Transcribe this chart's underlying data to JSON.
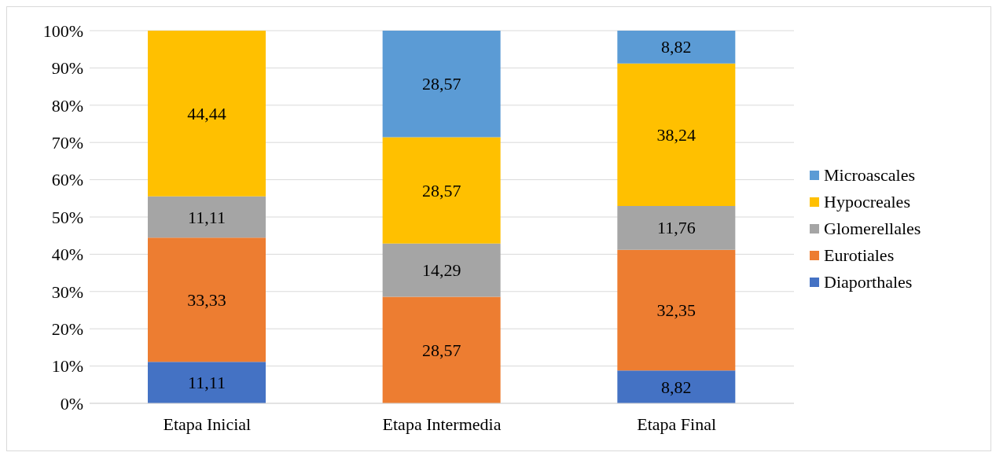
{
  "chart_data": {
    "type": "bar",
    "stacked": true,
    "categories": [
      "Etapa Inicial",
      "Etapa Intermedia",
      "Etapa Final"
    ],
    "series": [
      {
        "name": "Diaporthales",
        "color": "#4472c4",
        "values": [
          11.11,
          null,
          8.82
        ],
        "value_labels": [
          "11,11",
          null,
          "8,82"
        ]
      },
      {
        "name": "Eurotiales",
        "color": "#ed7d31",
        "values": [
          33.33,
          28.57,
          32.35
        ],
        "value_labels": [
          "33,33",
          "28,57",
          "32,35"
        ]
      },
      {
        "name": "Glomerellales",
        "color": "#a5a5a5",
        "values": [
          11.11,
          14.29,
          11.76
        ],
        "value_labels": [
          "11,11",
          "14,29",
          "11,76"
        ]
      },
      {
        "name": "Hypocreales",
        "color": "#ffc000",
        "values": [
          44.44,
          28.57,
          38.24
        ],
        "value_labels": [
          "44,44",
          "28,57",
          "38,24"
        ]
      },
      {
        "name": "Microascales",
        "color": "#5b9bd5",
        "values": [
          null,
          28.57,
          8.82
        ],
        "value_labels": [
          null,
          "28,57",
          "8,82"
        ]
      }
    ],
    "ylim": [
      0,
      100
    ],
    "yticks": [
      {
        "value": 0,
        "label": "0%"
      },
      {
        "value": 10,
        "label": "10%"
      },
      {
        "value": 20,
        "label": "20%"
      },
      {
        "value": 30,
        "label": "30%"
      },
      {
        "value": 40,
        "label": "40%"
      },
      {
        "value": 50,
        "label": "50%"
      },
      {
        "value": 60,
        "label": "60%"
      },
      {
        "value": 70,
        "label": "70%"
      },
      {
        "value": 80,
        "label": "80%"
      },
      {
        "value": 90,
        "label": "90%"
      },
      {
        "value": 100,
        "label": "100%"
      }
    ],
    "grid": "y",
    "legend": "right"
  }
}
